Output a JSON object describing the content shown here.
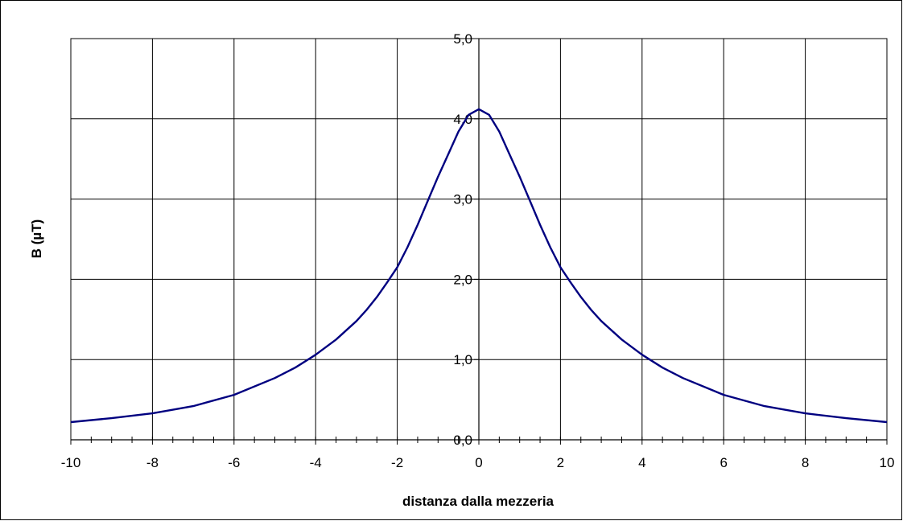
{
  "chart_data": {
    "type": "line",
    "title": "",
    "xlabel": "distanza dalla mezzeria",
    "ylabel": "B (µT)",
    "xlim": [
      -10,
      10
    ],
    "ylim": [
      0,
      5
    ],
    "x_ticks": [
      -10,
      -8,
      -6,
      -4,
      -2,
      0,
      2,
      4,
      6,
      8,
      10
    ],
    "x_tick_labels": [
      "-10",
      "-8",
      "-6",
      "-4",
      "-2",
      "0",
      "2",
      "4",
      "6",
      "8",
      "10"
    ],
    "y_ticks": [
      0,
      1,
      2,
      3,
      4,
      5
    ],
    "y_tick_labels": [
      "0,0",
      "1,0",
      "2,0",
      "3,0",
      "4,0",
      "5,0"
    ],
    "grid": true,
    "legend": "none",
    "series_color": "#000080",
    "series": [
      {
        "x": [
          -10,
          -9,
          -8,
          -7,
          -6,
          -5,
          -4.5,
          -4,
          -3.5,
          -3,
          -2.75,
          -2.5,
          -2.25,
          -2,
          -1.75,
          -1.5,
          -1.25,
          -1,
          -0.75,
          -0.5,
          -0.25,
          0,
          0.25,
          0.5,
          0.75,
          1,
          1.25,
          1.5,
          1.75,
          2,
          2.25,
          2.5,
          2.75,
          3,
          3.5,
          4,
          4.5,
          5,
          6,
          7,
          8,
          9,
          10
        ],
        "y": [
          0.22,
          0.27,
          0.33,
          0.42,
          0.56,
          0.77,
          0.9,
          1.06,
          1.25,
          1.48,
          1.62,
          1.78,
          1.96,
          2.15,
          2.4,
          2.68,
          2.98,
          3.28,
          3.56,
          3.84,
          4.05,
          4.12,
          4.05,
          3.84,
          3.56,
          3.28,
          2.98,
          2.68,
          2.4,
          2.15,
          1.96,
          1.78,
          1.62,
          1.48,
          1.25,
          1.06,
          0.9,
          0.77,
          0.56,
          0.42,
          0.33,
          0.27,
          0.22
        ]
      }
    ]
  }
}
